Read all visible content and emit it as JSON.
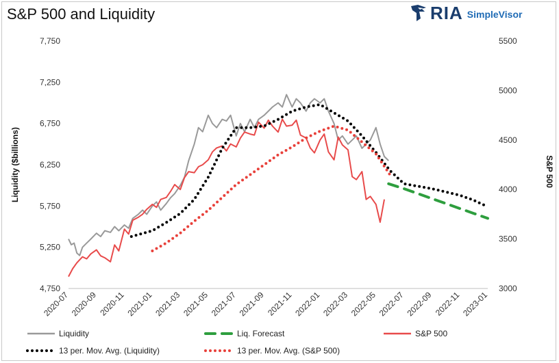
{
  "title": "S&P 500 and Liquidity",
  "logo": {
    "brand": "RIA",
    "product": "SimpleVisor",
    "icon": "eagle-icon",
    "brand_color": "#1a3d6d",
    "product_color": "#1f6bb5"
  },
  "chart_data": {
    "type": "line",
    "title": "S&P 500 and Liquidity",
    "ylabel": "Liquidity ($billions)",
    "y2label": "S&P 500",
    "ylim": [
      4750,
      7750
    ],
    "y2lim": [
      3000,
      5500
    ],
    "yticks": [
      "4,750",
      "5,250",
      "5,750",
      "6,250",
      "6,750",
      "7,250",
      "7,750"
    ],
    "y2ticks": [
      "3000",
      "3500",
      "4000",
      "4500",
      "5000",
      "5500"
    ],
    "xticks": [
      "2020-07",
      "2020-09",
      "2020-11",
      "2021-01",
      "2021-03",
      "2021-05",
      "2021-07",
      "2021-09",
      "2021-11",
      "2022-01",
      "2022-03",
      "2022-05",
      "2022-07",
      "2022-09",
      "2022-11",
      "2023-01"
    ],
    "xlim": [
      0,
      30
    ],
    "grid": false,
    "legend_position": "bottom",
    "series": [
      {
        "name": "Liquidity",
        "axis": "left",
        "style": "solid",
        "color": "#999999",
        "x": [
          0,
          0.2,
          0.4,
          0.6,
          0.8,
          1.0,
          1.3,
          1.6,
          2.0,
          2.3,
          2.6,
          3.0,
          3.3,
          3.6,
          4.0,
          4.3,
          4.6,
          5.0,
          5.3,
          5.6,
          6.0,
          6.3,
          6.6,
          7.0,
          7.3,
          7.6,
          8.0,
          8.3,
          8.6,
          9.0,
          9.3,
          9.6,
          10.0,
          10.3,
          10.6,
          11.0,
          11.3,
          11.6,
          12.0,
          12.3,
          12.6,
          13.0,
          13.3,
          13.6,
          14.0,
          14.3,
          14.6,
          15.0,
          15.3,
          15.6,
          16.0,
          16.3,
          16.6,
          17.0,
          17.3,
          17.6,
          18.0,
          18.3,
          18.6,
          19.0,
          19.3,
          19.6,
          20.0,
          20.3,
          20.6,
          21.0,
          21.3,
          21.6,
          22.0,
          22.3,
          22.6,
          22.9
        ],
        "y": [
          5350,
          5280,
          5300,
          5180,
          5150,
          5250,
          5300,
          5350,
          5420,
          5380,
          5450,
          5430,
          5500,
          5450,
          5520,
          5480,
          5600,
          5650,
          5700,
          5650,
          5750,
          5800,
          5700,
          5780,
          5850,
          5900,
          6000,
          6100,
          6300,
          6500,
          6700,
          6650,
          6850,
          6750,
          6700,
          6800,
          6780,
          6850,
          6600,
          6750,
          6650,
          6800,
          6700,
          6800,
          6850,
          6900,
          6950,
          7000,
          6950,
          7100,
          6950,
          7050,
          7000,
          6900,
          7000,
          7050,
          7000,
          7050,
          6900,
          6750,
          6550,
          6600,
          6500,
          6550,
          6600,
          6450,
          6500,
          6550,
          6700,
          6500,
          6350,
          6300
        ]
      },
      {
        "name": "Liq. Forecast",
        "axis": "left",
        "style": "dashed",
        "color": "#2e9e3e",
        "x": [
          22.9,
          24,
          25,
          26,
          27,
          28,
          29,
          30
        ],
        "y": [
          6020,
          5960,
          5900,
          5840,
          5780,
          5720,
          5660,
          5600
        ]
      },
      {
        "name": "S&P 500",
        "axis": "right",
        "style": "solid",
        "color": "#e84a4a",
        "x": [
          0,
          0.3,
          0.6,
          1.0,
          1.3,
          1.6,
          2.0,
          2.3,
          2.6,
          3.0,
          3.3,
          3.6,
          4.0,
          4.3,
          4.6,
          5.0,
          5.3,
          5.6,
          6.0,
          6.3,
          6.6,
          7.0,
          7.3,
          7.6,
          8.0,
          8.3,
          8.6,
          9.0,
          9.3,
          9.6,
          10.0,
          10.3,
          10.6,
          11.0,
          11.3,
          11.6,
          12.0,
          12.3,
          12.6,
          13.0,
          13.3,
          13.6,
          14.0,
          14.3,
          14.6,
          15.0,
          15.3,
          15.6,
          16.0,
          16.3,
          16.6,
          17.0,
          17.3,
          17.6,
          18.0,
          18.3,
          18.6,
          19.0,
          19.3,
          19.6,
          20.0,
          20.3,
          20.6,
          21.0,
          21.3,
          21.6,
          22.0,
          22.3,
          22.6
        ],
        "y": [
          3120,
          3200,
          3260,
          3320,
          3300,
          3350,
          3390,
          3330,
          3310,
          3270,
          3440,
          3380,
          3600,
          3550,
          3690,
          3720,
          3750,
          3800,
          3850,
          3820,
          3900,
          3920,
          3980,
          4050,
          4000,
          4120,
          4180,
          4170,
          4230,
          4250,
          4300,
          4380,
          4420,
          4440,
          4390,
          4460,
          4430,
          4520,
          4580,
          4560,
          4550,
          4680,
          4620,
          4700,
          4640,
          4580,
          4710,
          4640,
          4650,
          4700,
          4550,
          4520,
          4420,
          4370,
          4500,
          4560,
          4380,
          4300,
          4530,
          4450,
          4400,
          4130,
          4100,
          4180,
          3900,
          3930,
          3850,
          3670,
          3900
        ]
      },
      {
        "name": "13 per. Mov. Avg. (Liquidity)",
        "axis": "left",
        "style": "dotted",
        "color": "#000000",
        "x": [
          4.5,
          6,
          7,
          8,
          9,
          10,
          11,
          12,
          13,
          14,
          15,
          16,
          17,
          18,
          19,
          20,
          21,
          22,
          23,
          24,
          25,
          26,
          27,
          28,
          29,
          30
        ],
        "y": [
          5380,
          5450,
          5550,
          5660,
          5830,
          6100,
          6450,
          6700,
          6700,
          6720,
          6800,
          6900,
          6950,
          6980,
          6880,
          6780,
          6600,
          6400,
          6180,
          6020,
          5990,
          5960,
          5920,
          5880,
          5820,
          5740
        ]
      },
      {
        "name": "13 per. Mov. Avg. (S&P 500)",
        "axis": "right",
        "style": "dotted",
        "color": "#e8403a",
        "x": [
          6,
          7,
          8,
          9,
          10,
          11,
          12,
          13,
          14,
          15,
          16,
          17,
          18,
          19,
          20,
          21,
          22,
          23
        ],
        "y": [
          3380,
          3460,
          3560,
          3680,
          3790,
          3920,
          4050,
          4150,
          4250,
          4350,
          4430,
          4520,
          4590,
          4640,
          4600,
          4480,
          4360,
          4150
        ]
      }
    ]
  }
}
